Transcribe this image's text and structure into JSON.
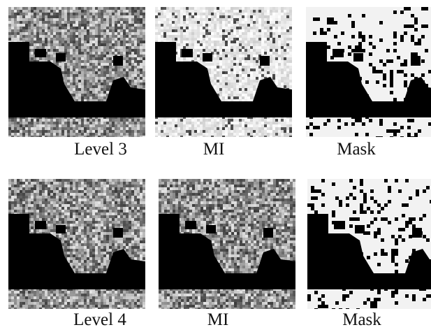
{
  "figure": {
    "rows": [
      {
        "panels": [
          {
            "caption": "Level 3",
            "style": "gray"
          },
          {
            "caption": "MI",
            "style": "bright"
          },
          {
            "caption": "Mask",
            "style": "mask"
          }
        ]
      },
      {
        "panels": [
          {
            "caption": "Level 4",
            "style": "gray"
          },
          {
            "caption": "MI",
            "style": "gray"
          },
          {
            "caption": "Mask",
            "style": "mask"
          }
        ]
      }
    ]
  }
}
